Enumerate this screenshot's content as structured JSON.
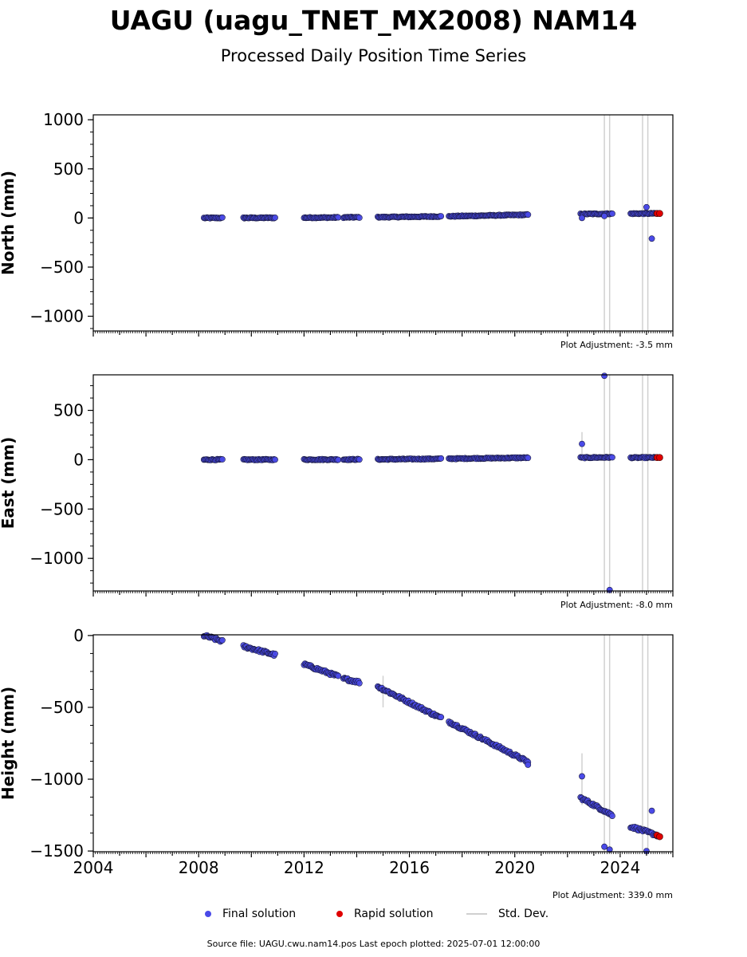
{
  "title": "UAGU (uagu_TNET_MX2008) NAM14",
  "subtitle": "Processed Daily Position Time Series",
  "footer": "Source file: UAGU.cwu.nam14.pos  Last epoch plotted: 2025-07-01 12:00:00",
  "legend": {
    "final": "Final solution",
    "rapid": "Rapid solution",
    "std": "Std. Dev."
  },
  "colors": {
    "final": "#4a4ae8",
    "rapid": "#e00000",
    "std": "#d0d0d0",
    "edge": "#1a1a40"
  },
  "chart_data": [
    {
      "type": "scatter",
      "name": "north",
      "ylabel": "North (mm)",
      "adjustment": "Plot Adjustment: -3.5 mm",
      "xlim": [
        2004,
        2026
      ],
      "ylim": [
        -1150,
        1050
      ],
      "yticks": [
        1000,
        500,
        0,
        -500,
        -1000
      ],
      "segments": [
        {
          "x0": 2008.2,
          "x1": 2008.9,
          "y0": 0,
          "y1": 1
        },
        {
          "x0": 2009.7,
          "x1": 2010.9,
          "y0": 1,
          "y1": 2
        },
        {
          "x0": 2012.0,
          "x1": 2013.3,
          "y0": 3,
          "y1": 5
        },
        {
          "x0": 2013.5,
          "x1": 2014.1,
          "y0": 6,
          "y1": 7
        },
        {
          "x0": 2014.8,
          "x1": 2017.2,
          "y0": 8,
          "y1": 16
        },
        {
          "x0": 2017.5,
          "x1": 2020.5,
          "y0": 17,
          "y1": 33
        },
        {
          "x0": 2022.5,
          "x1": 2023.7,
          "y0": 40,
          "y1": 44
        },
        {
          "x0": 2024.4,
          "x1": 2025.4,
          "y0": 44,
          "y1": 46
        }
      ],
      "outliers": [
        [
          2022.55,
          0
        ],
        [
          2025.2,
          -210
        ],
        [
          2025.0,
          110
        ],
        [
          2023.4,
          20
        ]
      ],
      "rapid": [
        [
          2025.4,
          46
        ],
        [
          2025.5,
          46
        ]
      ],
      "std_lines": [
        2023.4,
        2023.6,
        2024.85,
        2025.05
      ]
    },
    {
      "type": "scatter",
      "name": "east",
      "ylabel": "East (mm)",
      "adjustment": "Plot Adjustment: -8.0 mm",
      "xlim": [
        2004,
        2026
      ],
      "ylim": [
        -1330,
        860
      ],
      "yticks": [
        500,
        0,
        -500,
        -1000
      ],
      "segments": [
        {
          "x0": 2008.2,
          "x1": 2008.9,
          "y0": 0,
          "y1": 1
        },
        {
          "x0": 2009.7,
          "x1": 2010.9,
          "y0": 0,
          "y1": 1
        },
        {
          "x0": 2012.0,
          "x1": 2013.3,
          "y0": 1,
          "y1": 2
        },
        {
          "x0": 2013.5,
          "x1": 2014.1,
          "y0": 2,
          "y1": 3
        },
        {
          "x0": 2014.8,
          "x1": 2017.2,
          "y0": 3,
          "y1": 9
        },
        {
          "x0": 2017.5,
          "x1": 2020.5,
          "y0": 10,
          "y1": 20
        },
        {
          "x0": 2022.5,
          "x1": 2023.7,
          "y0": 20,
          "y1": 24
        },
        {
          "x0": 2024.4,
          "x1": 2025.4,
          "y0": 20,
          "y1": 22
        }
      ],
      "outliers": [
        [
          2022.55,
          160
        ],
        [
          2023.4,
          850
        ],
        [
          2023.6,
          -1320
        ]
      ],
      "rapid": [
        [
          2025.4,
          22
        ],
        [
          2025.5,
          22
        ]
      ],
      "std_lines": [
        2023.4,
        2023.6,
        2024.85,
        2025.05
      ],
      "std_bars": [
        [
          2022.55,
          60,
          280
        ]
      ]
    },
    {
      "type": "scatter",
      "name": "height",
      "ylabel": "Height (mm)",
      "adjustment": "Plot Adjustment: 339.0 mm",
      "xlim": [
        2004,
        2026
      ],
      "ylim": [
        -1505,
        5
      ],
      "yticks": [
        0,
        -500,
        -1000,
        -1500
      ],
      "xticks": [
        2004,
        2008,
        2012,
        2016,
        2020,
        2024
      ],
      "segments": [
        {
          "x0": 2008.2,
          "x1": 2008.9,
          "y0": 0,
          "y1": -40
        },
        {
          "x0": 2009.7,
          "x1": 2010.9,
          "y0": -75,
          "y1": -135
        },
        {
          "x0": 2012.0,
          "x1": 2013.3,
          "y0": -200,
          "y1": -285
        },
        {
          "x0": 2013.5,
          "x1": 2014.1,
          "y0": -300,
          "y1": -325
        },
        {
          "x0": 2014.8,
          "x1": 2017.2,
          "y0": -355,
          "y1": -575
        },
        {
          "x0": 2017.5,
          "x1": 2020.5,
          "y0": -600,
          "y1": -880
        },
        {
          "x0": 2022.5,
          "x1": 2023.7,
          "y0": -1130,
          "y1": -1250
        },
        {
          "x0": 2024.4,
          "x1": 2025.4,
          "y0": -1330,
          "y1": -1390
        }
      ],
      "outliers": [
        [
          2022.55,
          -980
        ],
        [
          2023.4,
          -1470
        ],
        [
          2023.6,
          -1490
        ],
        [
          2025.0,
          -1500
        ],
        [
          2025.2,
          -1220
        ],
        [
          2020.5,
          -900
        ]
      ],
      "rapid": [
        [
          2025.4,
          -1390
        ],
        [
          2025.5,
          -1400
        ]
      ],
      "std_lines": [
        2023.4,
        2023.6,
        2024.85,
        2025.05
      ],
      "std_bars": [
        [
          2015.0,
          -500,
          -280
        ],
        [
          2022.55,
          -1180,
          -820
        ]
      ]
    }
  ]
}
